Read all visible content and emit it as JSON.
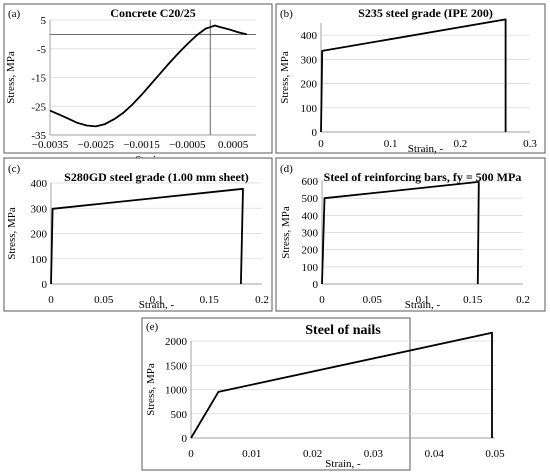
{
  "chart_data": [
    {
      "type": "line",
      "panel_label": "(a)",
      "title": "Concrete C20/25",
      "xlabel": "Strain, -",
      "ylabel": "Stress, MPa",
      "xlim": [
        -0.0035,
        0.001
      ],
      "ylim": [
        -35,
        5
      ],
      "xticks": [
        -0.0035,
        -0.0025,
        -0.0015,
        -0.0005,
        0.0005
      ],
      "xtick_labels": [
        "-0.0035",
        "-0.0025",
        "-0.0015",
        "-0.0005",
        "0.0005"
      ],
      "yticks": [
        5,
        -5,
        -15,
        -25,
        -35
      ],
      "ytick_labels": [
        "5",
        "-5",
        "-15",
        "-25",
        "-35"
      ],
      "grid": "horizontal",
      "series": [
        {
          "x": [
            -0.0035,
            -0.0032,
            -0.0029,
            -0.0027,
            -0.0025,
            -0.0023,
            -0.0021,
            -0.0019,
            -0.0017,
            -0.0015,
            -0.0013,
            -0.0011,
            -0.0009,
            -0.0007,
            -0.0005,
            -0.0003,
            -0.0001,
            0.0,
            0.0001,
            0.0002,
            0.0004,
            0.0006,
            0.0008
          ],
          "y": [
            -26.5,
            -28.6,
            -30.8,
            -31.7,
            -32.0,
            -31.2,
            -29.5,
            -27.3,
            -24.4,
            -21.0,
            -17.4,
            -13.7,
            -10.1,
            -6.6,
            -3.4,
            -0.4,
            2.0,
            2.5,
            3.1,
            2.6,
            1.8,
            0.8,
            0.0
          ]
        }
      ],
      "reference_lines": {
        "horizontal_at_y": 0,
        "vertical_at_x": 0
      }
    },
    {
      "type": "line",
      "panel_label": "(b)",
      "title": "S235 steel grade (IPE 200)",
      "xlabel": "Strain, -",
      "ylabel": "Stress, MPa",
      "xlim": [
        0,
        0.3
      ],
      "ylim": [
        0,
        450
      ],
      "xticks": [
        0,
        0.1,
        0.2,
        0.3
      ],
      "xtick_labels": [
        "0",
        "0.1",
        "0.2",
        "0.3"
      ],
      "yticks": [
        0,
        100,
        200,
        300,
        400
      ],
      "ytick_labels": [
        "0",
        "100",
        "200",
        "300",
        "400"
      ],
      "grid": "horizontal",
      "series": [
        {
          "x": [
            0,
            0.0017,
            0.265,
            0.265
          ],
          "y": [
            0,
            335,
            465,
            0
          ]
        }
      ]
    },
    {
      "type": "line",
      "panel_label": "(c)",
      "title": "S280GD steel grade (1.00 mm sheet)",
      "xlabel": "Strain, -",
      "ylabel": "Stress, MPa",
      "xlim": [
        0,
        0.2
      ],
      "ylim": [
        0,
        400
      ],
      "xticks": [
        0,
        0.05,
        0.1,
        0.15,
        0.2
      ],
      "xtick_labels": [
        "0",
        "0.05",
        "0.1",
        "0.15",
        "0.2"
      ],
      "yticks": [
        0,
        100,
        200,
        300,
        400
      ],
      "ytick_labels": [
        "0",
        "100",
        "200",
        "300",
        "400"
      ],
      "grid": "horizontal",
      "series": [
        {
          "x": [
            0,
            0.0015,
            0.182,
            0.18
          ],
          "y": [
            0,
            298,
            377,
            0
          ]
        }
      ]
    },
    {
      "type": "line",
      "panel_label": "(d)",
      "title": "Steel of reinforcing bars, fy = 500 MPa",
      "xlabel": "Strain, -",
      "ylabel": "Stress, MPa",
      "xlim": [
        0,
        0.2
      ],
      "ylim": [
        0,
        600
      ],
      "xticks": [
        0,
        0.05,
        0.1,
        0.15,
        0.2
      ],
      "xtick_labels": [
        "0",
        "0.05",
        "0.1",
        "0.15",
        "0.2"
      ],
      "yticks": [
        0,
        100,
        200,
        300,
        400,
        500,
        600
      ],
      "ytick_labels": [
        "0",
        "100",
        "200",
        "300",
        "400",
        "500",
        "600"
      ],
      "grid": "horizontal",
      "series": [
        {
          "x": [
            0,
            0.0025,
            0.156,
            0.155
          ],
          "y": [
            0,
            500,
            595,
            0
          ]
        }
      ]
    },
    {
      "type": "line",
      "panel_label": "(e)",
      "title": "Steel of nails",
      "xlabel": "Strain, -",
      "ylabel": "Stress, MPa",
      "xlim": [
        0,
        0.05
      ],
      "ylim": [
        0,
        2000
      ],
      "xticks": [
        0,
        0.01,
        0.02,
        0.03,
        0.04,
        0.05
      ],
      "xtick_labels": [
        "0",
        "0.01",
        "0.02",
        "0.03",
        "0.04",
        "0.05"
      ],
      "yticks": [
        0,
        500,
        1000,
        1500,
        2000
      ],
      "ytick_labels": [
        "0",
        "500",
        "1000",
        "1500",
        "2000"
      ],
      "grid": "horizontal",
      "series": [
        {
          "x": [
            0,
            0.0045,
            0.0495,
            0.0495
          ],
          "y": [
            0,
            950,
            2170,
            0
          ]
        }
      ]
    }
  ],
  "colors": {
    "line": "#000000",
    "grid": "#d9d9d9",
    "frame": "#5a5a5a",
    "reference": "#404040"
  }
}
